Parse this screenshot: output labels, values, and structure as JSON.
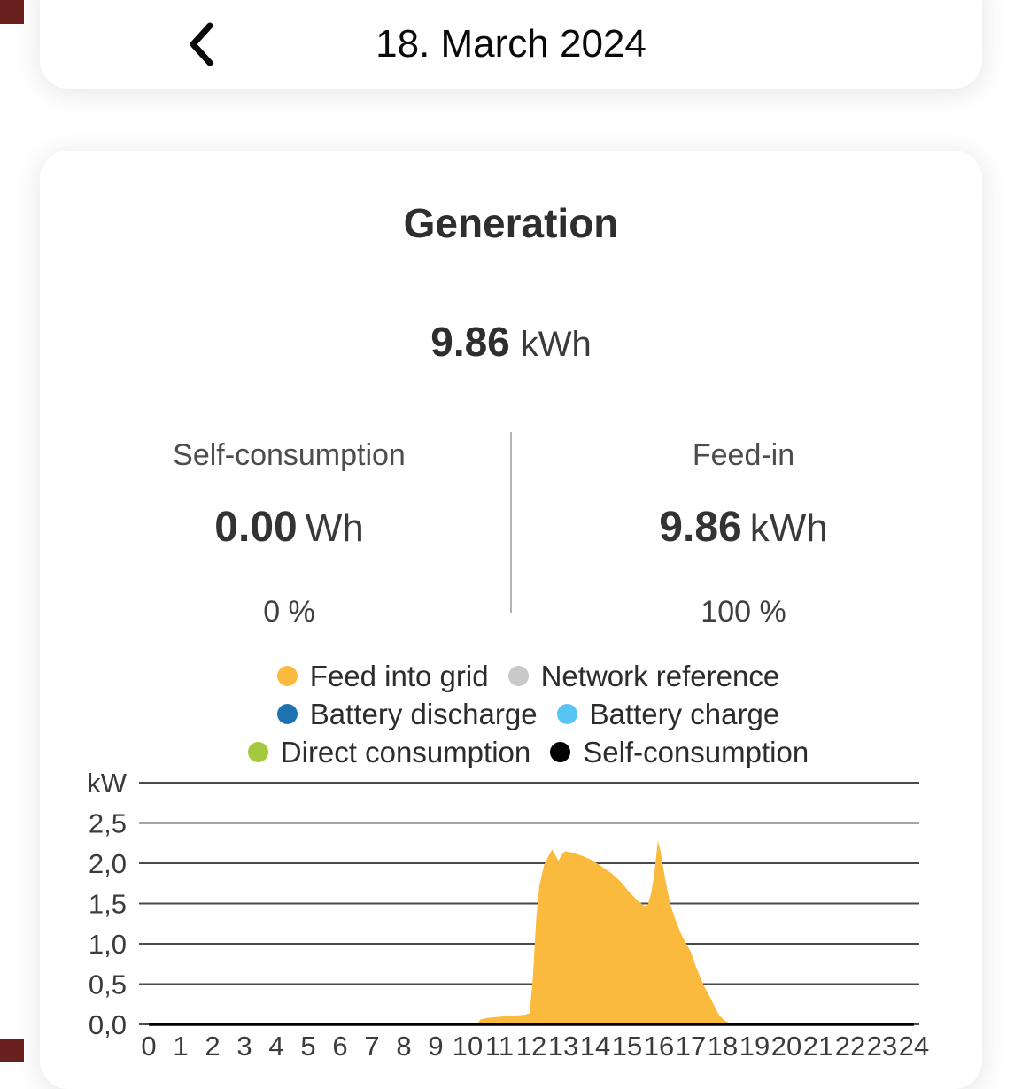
{
  "header": {
    "title": "18. March 2024",
    "back_icon": "chevron-left"
  },
  "card": {
    "title": "Generation",
    "total": {
      "value": "9.86",
      "unit": "kWh"
    },
    "stats": {
      "left": {
        "label": "Self-consumption",
        "value": "0.00",
        "unit": "Wh",
        "percent": "0 %"
      },
      "right": {
        "label": "Feed-in",
        "value": "9.86",
        "unit": "kWh",
        "percent": "100 %"
      }
    }
  },
  "chart_data": {
    "type": "area",
    "title": "",
    "ylabel": "kW",
    "xlabel": "",
    "ylim": [
      0,
      3
    ],
    "xlim": [
      0,
      24
    ],
    "grid": true,
    "legend_position": "top",
    "yticks": [
      {
        "value": 3.0,
        "label": "kW"
      },
      {
        "value": 2.5,
        "label": "2,5"
      },
      {
        "value": 2.0,
        "label": "2,0"
      },
      {
        "value": 1.5,
        "label": "1,5"
      },
      {
        "value": 1.0,
        "label": "1,0"
      },
      {
        "value": 0.5,
        "label": "0,5"
      },
      {
        "value": 0.0,
        "label": "0,0"
      }
    ],
    "xticks": [
      0,
      1,
      2,
      3,
      4,
      5,
      6,
      7,
      8,
      9,
      10,
      11,
      12,
      13,
      14,
      15,
      16,
      17,
      18,
      19,
      20,
      21,
      22,
      23,
      24
    ],
    "series": [
      {
        "name": "Feed into grid",
        "color": "#F9BA3D",
        "style": "area",
        "points": [
          [
            10.3,
            0
          ],
          [
            10.4,
            0.06
          ],
          [
            10.6,
            0.08
          ],
          [
            10.9,
            0.09
          ],
          [
            11.2,
            0.1
          ],
          [
            11.5,
            0.11
          ],
          [
            11.8,
            0.12
          ],
          [
            11.95,
            0.14
          ],
          [
            12.05,
            0.6
          ],
          [
            12.15,
            1.3
          ],
          [
            12.25,
            1.72
          ],
          [
            12.4,
            1.98
          ],
          [
            12.55,
            2.1
          ],
          [
            12.65,
            2.17
          ],
          [
            12.75,
            2.1
          ],
          [
            12.85,
            2.03
          ],
          [
            12.95,
            2.1
          ],
          [
            13.05,
            2.15
          ],
          [
            13.3,
            2.13
          ],
          [
            13.6,
            2.09
          ],
          [
            13.9,
            2.04
          ],
          [
            14.2,
            1.96
          ],
          [
            14.5,
            1.88
          ],
          [
            14.8,
            1.77
          ],
          [
            15.1,
            1.63
          ],
          [
            15.35,
            1.53
          ],
          [
            15.55,
            1.47
          ],
          [
            15.65,
            1.48
          ],
          [
            15.75,
            1.62
          ],
          [
            15.85,
            1.85
          ],
          [
            15.97,
            2.28
          ],
          [
            16.05,
            2.15
          ],
          [
            16.2,
            1.8
          ],
          [
            16.35,
            1.5
          ],
          [
            16.5,
            1.32
          ],
          [
            16.7,
            1.12
          ],
          [
            16.9,
            0.97
          ],
          [
            17.0,
            0.9
          ],
          [
            17.15,
            0.73
          ],
          [
            17.3,
            0.58
          ],
          [
            17.45,
            0.45
          ],
          [
            17.6,
            0.34
          ],
          [
            17.75,
            0.22
          ],
          [
            17.9,
            0.11
          ],
          [
            18.05,
            0.05
          ],
          [
            18.3,
            0
          ]
        ]
      },
      {
        "name": "Network reference",
        "color": "#C9C9C9",
        "style": "line",
        "points": []
      },
      {
        "name": "Battery discharge",
        "color": "#1F72B0",
        "style": "line",
        "points": []
      },
      {
        "name": "Battery charge",
        "color": "#58C4F4",
        "style": "line",
        "points": []
      },
      {
        "name": "Direct consumption",
        "color": "#A3C93F",
        "style": "line",
        "points": []
      },
      {
        "name": "Self-consumption",
        "color": "#000000",
        "style": "line",
        "points": [
          [
            0,
            0
          ],
          [
            24,
            0
          ]
        ]
      }
    ]
  },
  "theme": {
    "accent": "#F9BA3D",
    "corner_accent": "#6b2020",
    "grid_color": "#4a4a4a",
    "card_bg": "#ffffff"
  }
}
